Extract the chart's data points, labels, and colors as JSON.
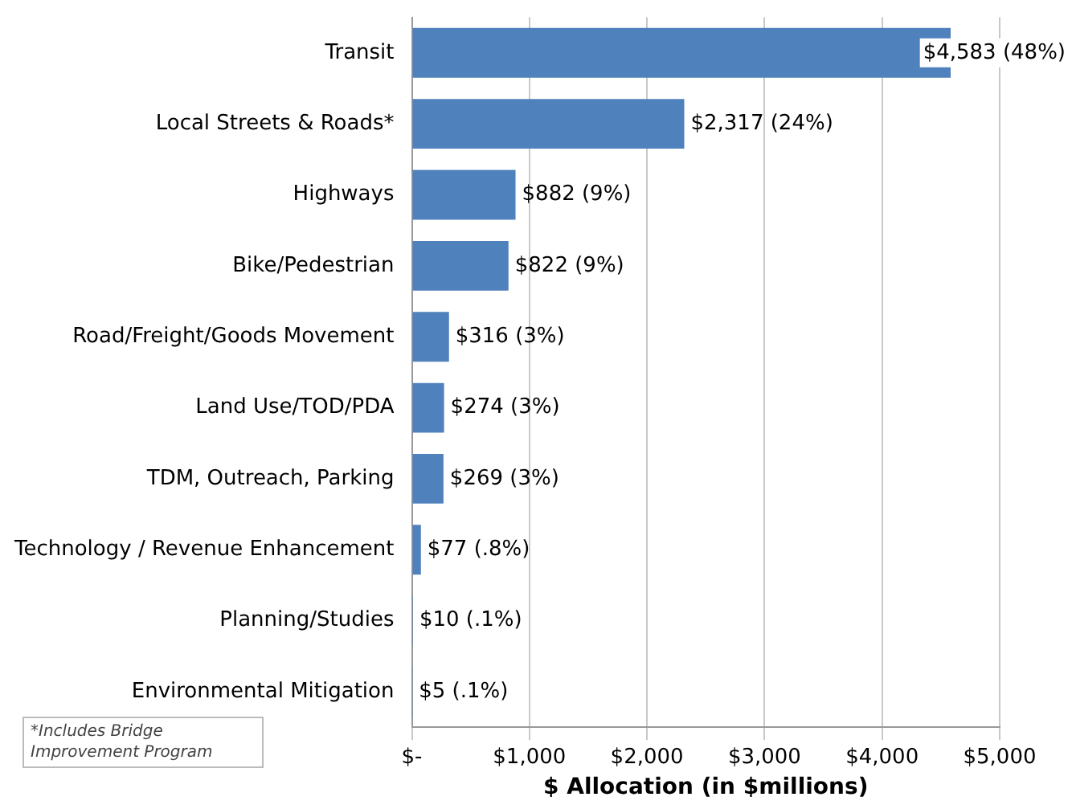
{
  "chart_data": {
    "type": "bar",
    "orientation": "horizontal",
    "categories": [
      "Transit",
      "Local Streets & Roads*",
      "Highways",
      "Bike/Pedestrian",
      "Road/Freight/Goods Movement",
      "Land Use/TOD/PDA",
      "TDM, Outreach, Parking",
      "Technology / Revenue Enhancement",
      "Planning/Studies",
      "Environmental Mitigation"
    ],
    "values": [
      4583,
      2317,
      882,
      822,
      316,
      274,
      269,
      77,
      10,
      5
    ],
    "value_labels": [
      "$4,583 (48%)",
      "$2,317 (24%)",
      "$882 (9%)",
      "$822 (9%)",
      "$316 (3%)",
      "$274 (3%)",
      "$269 (3%)",
      "$77 (.8%)",
      "$10 (.1%)",
      "$5 (.1%)"
    ],
    "color": "#4f81bd",
    "xlim": [
      0,
      5000
    ],
    "xticks": [
      {
        "value": 0,
        "label": "$-"
      },
      {
        "value": 1000,
        "label": "$1,000"
      },
      {
        "value": 2000,
        "label": "$2,000"
      },
      {
        "value": 3000,
        "label": "$3,000"
      },
      {
        "value": 4000,
        "label": "$4,000"
      },
      {
        "value": 5000,
        "label": "$5,000"
      }
    ],
    "xlabel": "$ Allocation (in $millions)",
    "grid": "x",
    "legend": false,
    "annotations": [
      "*Includes Bridge Improvement Program"
    ]
  }
}
